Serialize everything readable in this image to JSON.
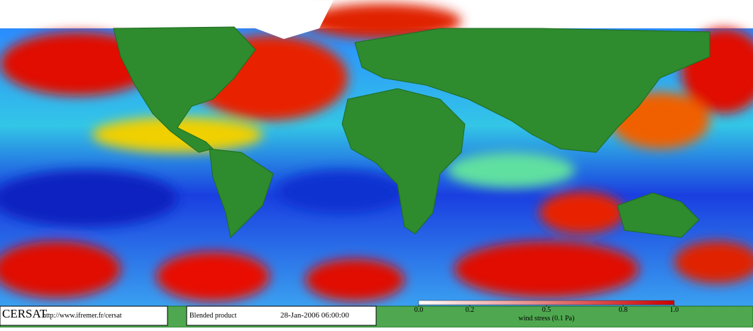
{
  "footer": {
    "logo": "CERSAT",
    "url": "http://www.ifremer.fr/cersat",
    "product": "Blended product",
    "timestamp": "28-Jan-2006 06:00:00"
  },
  "colorbar": {
    "label": "wind stress (0.1 Pa)",
    "range": [
      0,
      1
    ],
    "ticks": [
      {
        "value": 0,
        "label": "0.0"
      },
      0.2,
      0.5,
      0.8,
      {
        "value": 1,
        "label": "1.0"
      }
    ],
    "colors": [
      "#ffffff",
      "#cc0000"
    ]
  }
}
